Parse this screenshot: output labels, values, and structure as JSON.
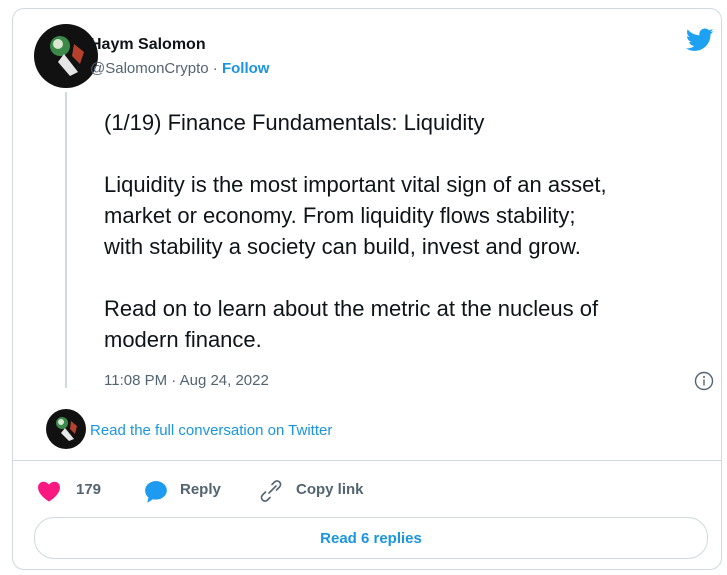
{
  "author": {
    "name": "Haym Salomon",
    "handle": "@SalomonCrypto",
    "separator": "·",
    "follow": "Follow"
  },
  "tweet": {
    "paragraphs": [
      [
        "(1/19) Finance Fundamentals: Liquidity"
      ],
      [
        "Liquidity is the most important vital sign of an asset,",
        "market or economy. From liquidity flows stability;",
        "with stability a society can build, invest and grow."
      ],
      [
        "Read on to learn about the metric at the nucleus of",
        "modern finance."
      ]
    ],
    "timestamp": "11:08 PM · Aug 24, 2022"
  },
  "conversation_link": "Read the full conversation on Twitter",
  "actions": {
    "likes": "179",
    "reply": "Reply",
    "copy_link": "Copy link"
  },
  "replies_button": "Read 6 replies"
}
